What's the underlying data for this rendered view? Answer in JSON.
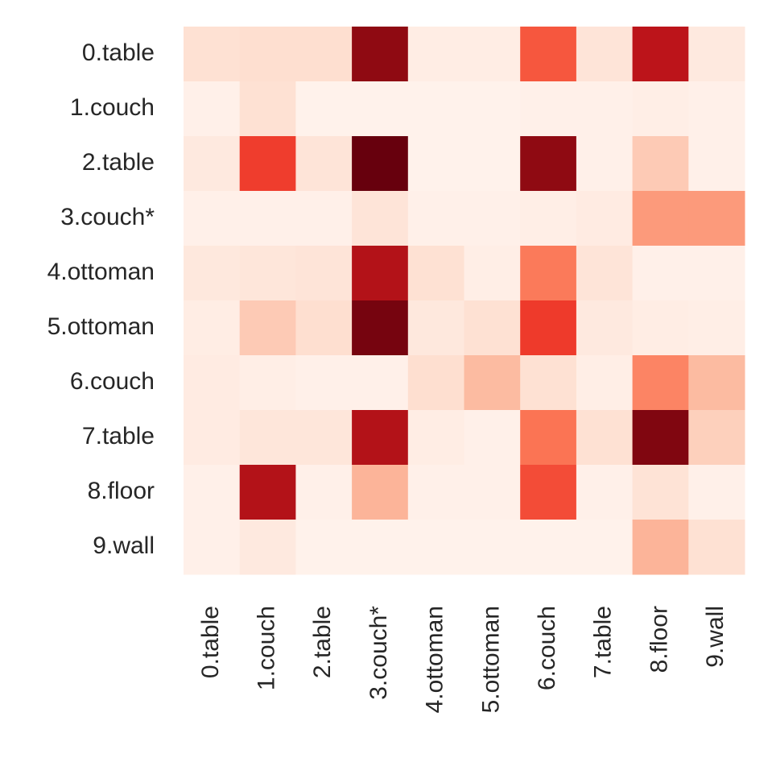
{
  "chart_data": {
    "type": "heatmap",
    "x": [
      "0.table",
      "1.couch",
      "2.table",
      "3.couch*",
      "4.ottoman",
      "5.ottoman",
      "6.couch",
      "7.table",
      "8.floor",
      "9.wall"
    ],
    "y": [
      "0.table",
      "1.couch",
      "2.table",
      "3.couch*",
      "4.ottoman",
      "5.ottoman",
      "6.couch",
      "7.table",
      "8.floor",
      "9.wall"
    ],
    "values": [
      [
        0.12,
        0.13,
        0.13,
        0.92,
        0.05,
        0.05,
        0.55,
        0.1,
        0.8,
        0.07
      ],
      [
        0.03,
        0.12,
        0.02,
        0.02,
        0.02,
        0.02,
        0.03,
        0.03,
        0.04,
        0.03
      ],
      [
        0.07,
        0.62,
        0.1,
        1.0,
        0.02,
        0.02,
        0.92,
        0.03,
        0.2,
        0.03
      ],
      [
        0.03,
        0.03,
        0.03,
        0.1,
        0.03,
        0.03,
        0.04,
        0.06,
        0.35,
        0.35
      ],
      [
        0.08,
        0.09,
        0.1,
        0.83,
        0.12,
        0.04,
        0.45,
        0.1,
        0.03,
        0.03
      ],
      [
        0.05,
        0.2,
        0.13,
        0.97,
        0.08,
        0.12,
        0.63,
        0.07,
        0.05,
        0.04
      ],
      [
        0.06,
        0.04,
        0.03,
        0.03,
        0.13,
        0.25,
        0.12,
        0.04,
        0.42,
        0.25
      ],
      [
        0.06,
        0.09,
        0.09,
        0.83,
        0.05,
        0.03,
        0.47,
        0.12,
        0.95,
        0.18
      ],
      [
        0.03,
        0.83,
        0.03,
        0.27,
        0.03,
        0.03,
        0.58,
        0.03,
        0.11,
        0.03
      ],
      [
        0.03,
        0.07,
        0.02,
        0.02,
        0.02,
        0.02,
        0.02,
        0.02,
        0.27,
        0.12
      ]
    ],
    "colormap": "Reds",
    "clim": [
      0,
      1
    ]
  }
}
